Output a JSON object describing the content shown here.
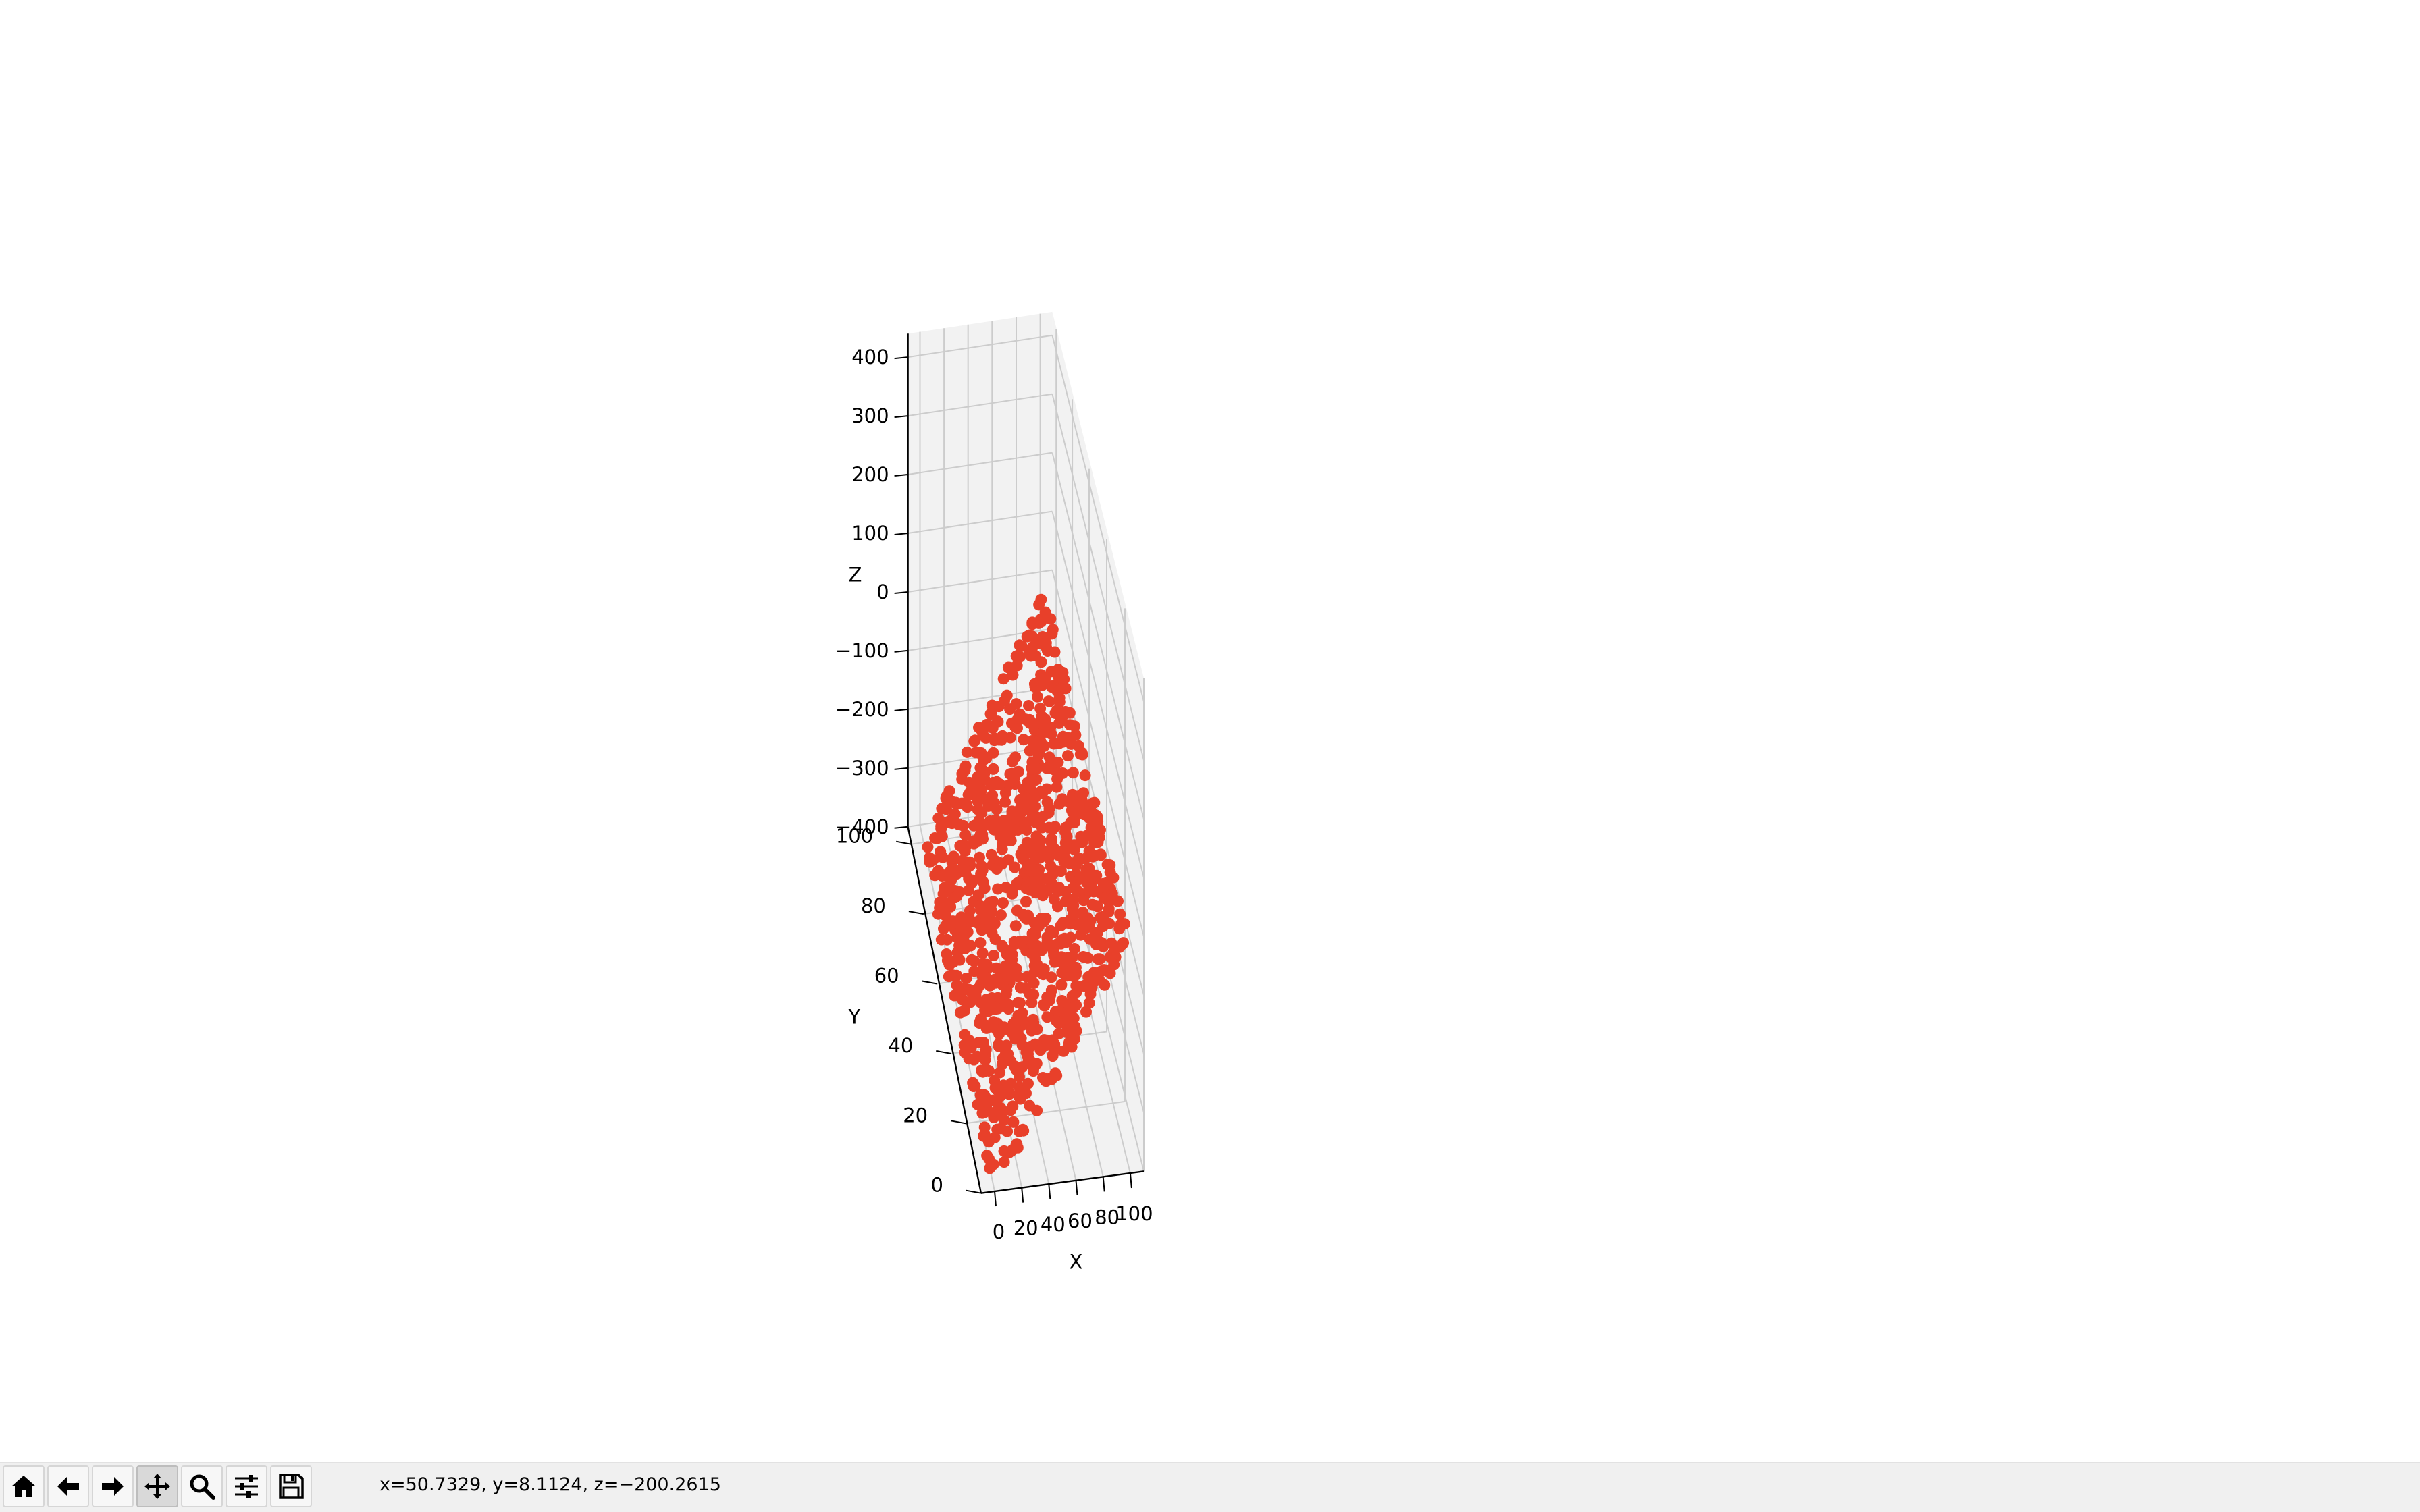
{
  "window": {
    "toolbar": {
      "buttons": [
        {
          "name": "home-button",
          "icon": "home-icon"
        },
        {
          "name": "back-button",
          "icon": "arrow-left-icon"
        },
        {
          "name": "forward-button",
          "icon": "arrow-right-icon"
        },
        {
          "name": "pan-button",
          "icon": "move-icon",
          "active": true
        },
        {
          "name": "zoom-button",
          "icon": "magnifier-icon"
        },
        {
          "name": "configure-subplots-button",
          "icon": "sliders-icon"
        },
        {
          "name": "save-button",
          "icon": "floppy-disk-icon"
        }
      ],
      "coordinates": "x=50.7329, y=8.1124, z=−200.2615"
    }
  },
  "chart_data": {
    "type": "scatter",
    "projection": "3d",
    "title": "",
    "xlabel": "X",
    "ylabel": "Y",
    "zlabel": "Z",
    "xlim": [
      -10,
      110
    ],
    "ylim": [
      0,
      105
    ],
    "zlim": [
      -400,
      440
    ],
    "xticks": [
      0,
      20,
      40,
      60,
      80,
      100
    ],
    "yticks": [
      0,
      20,
      40,
      60,
      80,
      100
    ],
    "zticks": [
      -400,
      -300,
      -200,
      -100,
      0,
      100,
      200,
      300,
      400
    ],
    "xtick_labels": [
      "0",
      "20",
      "40",
      "60",
      "80",
      "100"
    ],
    "ytick_labels": [
      "0",
      "20",
      "40",
      "60",
      "80",
      "100"
    ],
    "ztick_labels": [
      "−400",
      "−300",
      "−200",
      "−100",
      "0",
      "100",
      "200",
      "300",
      "400"
    ],
    "grid": true,
    "marker_color": "#e8402a",
    "point_count": 1000,
    "point_distribution": "uniform random over x and y in [0, 100], z = 4 * x - 400 (points lie on an inclined plane)",
    "pane_color": "#f2f2f2",
    "grid_color": "#cccccc"
  }
}
